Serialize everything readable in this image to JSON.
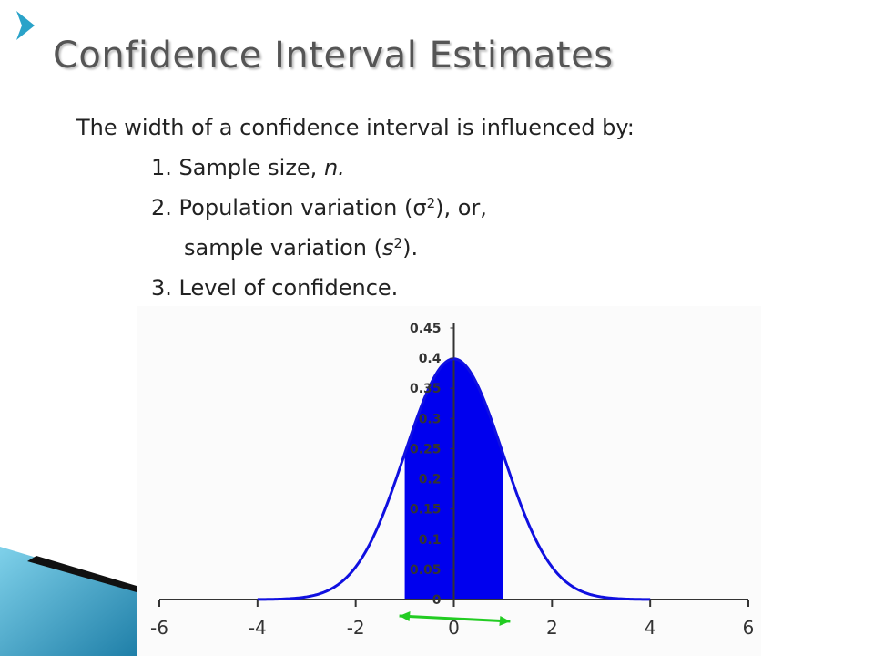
{
  "slide": {
    "title": "Confidence Interval Estimates",
    "intro": "The width of a confidence interval is influenced by:",
    "items": [
      {
        "text": "1. Sample size, ",
        "em": "n."
      },
      {
        "text": "2. Population variation (σ",
        "sup": "2",
        "after": "), or,"
      },
      {
        "text": "sample variation (",
        "em": "s",
        "sup": "2",
        "after_em": ")."
      },
      {
        "text": "3. Level of confidence."
      }
    ]
  },
  "decor": {
    "arrow_icon": "chevron-right-icon",
    "accent_color": "#2aa3c9"
  },
  "chart_data": {
    "type": "area",
    "title": "",
    "xlabel": "",
    "ylabel": "",
    "xlim": [
      -6,
      6
    ],
    "ylim": [
      0,
      0.45
    ],
    "x_ticks": [
      -6,
      -4,
      -2,
      0,
      2,
      4,
      6
    ],
    "y_ticks": [
      0,
      0.05,
      0.1,
      0.15,
      0.2,
      0.25,
      0.3,
      0.35,
      0.4,
      0.45
    ],
    "x_tick_labels": [
      "-6",
      "-4",
      "-2",
      "0",
      "2",
      "4",
      "6"
    ],
    "y_tick_labels": [
      "0",
      "0.05",
      "0.1",
      "0.15",
      "0.2",
      "0.25",
      "0.3",
      "0.35",
      "0.4",
      "0.45"
    ],
    "curve": "standard normal density",
    "curve_range": [
      -4,
      4
    ],
    "shaded_interval": [
      -1,
      1
    ],
    "interval_arrow": [
      -1,
      1
    ],
    "colors": {
      "curve": "#1010e0",
      "fill": "#0000ee",
      "arrow": "#22cc22",
      "axis": "#333333"
    },
    "grid": false
  }
}
